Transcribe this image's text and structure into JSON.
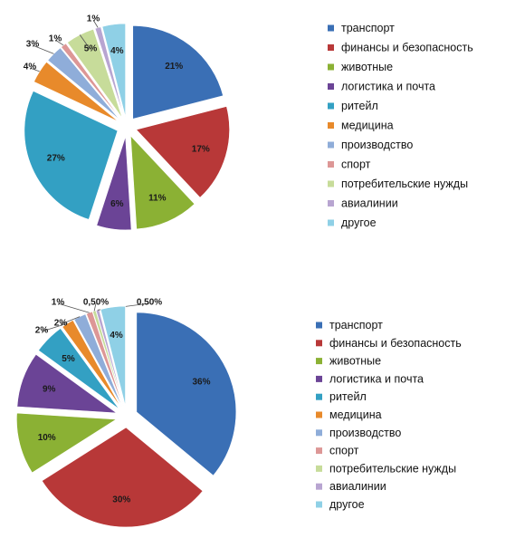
{
  "chart_data": [
    {
      "type": "pie",
      "title": "",
      "categories": [
        "транспорт",
        "финансы и безопасность",
        "животные",
        "логистика и почта",
        "ритейл",
        "медицина",
        "производство",
        "спорт",
        "потребительские нужды",
        "авиалинии",
        "другое"
      ],
      "values": [
        21,
        17,
        11,
        6,
        27,
        4,
        3,
        1,
        5,
        1,
        4
      ],
      "data_labels": [
        "21%",
        "17%",
        "11%",
        "6%",
        "27%",
        "4%",
        "3%",
        "1%",
        "5%",
        "1%",
        "4%"
      ],
      "colors": [
        "#3a6fb5",
        "#b83838",
        "#8bb134",
        "#6b4496",
        "#33a0c3",
        "#e88a2b",
        "#8fadd9",
        "#dd9796",
        "#c7dc9a",
        "#b8a5d1",
        "#8fd0e6"
      ],
      "exploded": true,
      "legend": "right"
    },
    {
      "type": "pie",
      "title": "",
      "categories": [
        "транспорт",
        "финансы и безопасность",
        "животные",
        "логистика и почта",
        "ритейл",
        "медицина",
        "производство",
        "спорт",
        "потребительские нужды",
        "авиалинии",
        "другое"
      ],
      "values": [
        36,
        30,
        10,
        9,
        5,
        2,
        2,
        1,
        0.5,
        0.5,
        4
      ],
      "data_labels": [
        "36%",
        "30%",
        "10%",
        "9%",
        "5%",
        "2%",
        "2%",
        "1%",
        "0,50%",
        "0,50%",
        "4%"
      ],
      "colors": [
        "#3a6fb5",
        "#b83838",
        "#8bb134",
        "#6b4496",
        "#33a0c3",
        "#e88a2b",
        "#8fadd9",
        "#dd9796",
        "#c7dc9a",
        "#b8a5d1",
        "#8fd0e6"
      ],
      "exploded": true,
      "legend": "right"
    }
  ]
}
